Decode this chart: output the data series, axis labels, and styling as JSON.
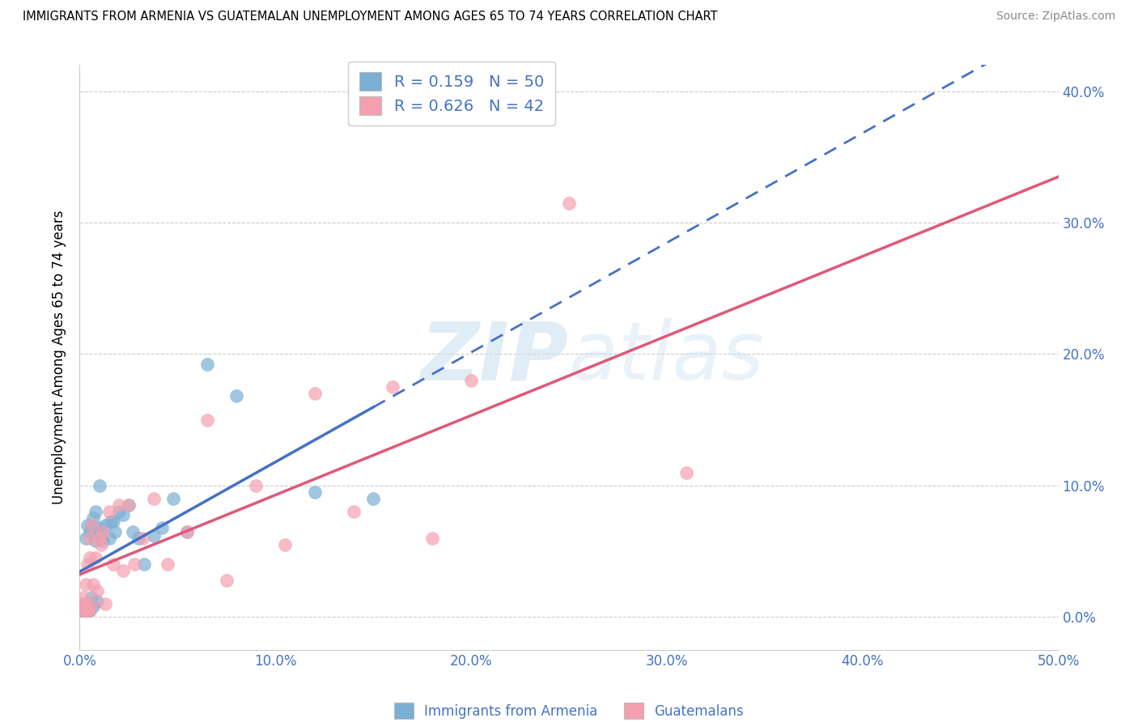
{
  "title": "IMMIGRANTS FROM ARMENIA VS GUATEMALAN UNEMPLOYMENT AMONG AGES 65 TO 74 YEARS CORRELATION CHART",
  "source": "Source: ZipAtlas.com",
  "ylabel": "Unemployment Among Ages 65 to 74 years",
  "legend_label1": "Immigrants from Armenia",
  "legend_label2": "Guatemalans",
  "r1": 0.159,
  "n1": 50,
  "r2": 0.626,
  "n2": 42,
  "xmin": 0.0,
  "xmax": 0.5,
  "ymin": -0.025,
  "ymax": 0.42,
  "xticks": [
    0.0,
    0.1,
    0.2,
    0.3,
    0.4,
    0.5
  ],
  "xticklabels": [
    "0.0%",
    "10.0%",
    "20.0%",
    "30.0%",
    "40.0%",
    "50.0%"
  ],
  "yticks": [
    0.0,
    0.1,
    0.2,
    0.3,
    0.4
  ],
  "yticklabels": [
    "0.0%",
    "10.0%",
    "20.0%",
    "30.0%",
    "40.0%"
  ],
  "color1": "#7bafd4",
  "color2": "#f4a0b0",
  "line1_color": "#4472c4",
  "line2_color": "#e05878",
  "watermark_zip": "ZIP",
  "watermark_atlas": "atlas",
  "armenia_x": [
    0.001,
    0.001,
    0.002,
    0.002,
    0.002,
    0.002,
    0.003,
    0.003,
    0.003,
    0.003,
    0.003,
    0.004,
    0.004,
    0.004,
    0.004,
    0.005,
    0.005,
    0.005,
    0.006,
    0.006,
    0.006,
    0.007,
    0.007,
    0.008,
    0.008,
    0.009,
    0.009,
    0.01,
    0.01,
    0.011,
    0.012,
    0.013,
    0.015,
    0.016,
    0.017,
    0.018,
    0.02,
    0.022,
    0.025,
    0.027,
    0.03,
    0.033,
    0.038,
    0.042,
    0.048,
    0.055,
    0.065,
    0.08,
    0.12,
    0.15
  ],
  "armenia_y": [
    0.005,
    0.01,
    0.005,
    0.005,
    0.007,
    0.008,
    0.005,
    0.005,
    0.005,
    0.007,
    0.06,
    0.005,
    0.008,
    0.01,
    0.07,
    0.005,
    0.008,
    0.065,
    0.01,
    0.015,
    0.07,
    0.008,
    0.075,
    0.058,
    0.08,
    0.012,
    0.065,
    0.068,
    0.1,
    0.065,
    0.058,
    0.07,
    0.06,
    0.073,
    0.073,
    0.065,
    0.08,
    0.078,
    0.085,
    0.065,
    0.06,
    0.04,
    0.062,
    0.068,
    0.09,
    0.065,
    0.192,
    0.168,
    0.095,
    0.09
  ],
  "guatemala_x": [
    0.001,
    0.001,
    0.002,
    0.002,
    0.003,
    0.003,
    0.003,
    0.004,
    0.004,
    0.005,
    0.005,
    0.005,
    0.006,
    0.006,
    0.007,
    0.008,
    0.009,
    0.01,
    0.011,
    0.012,
    0.013,
    0.015,
    0.017,
    0.02,
    0.022,
    0.025,
    0.028,
    0.032,
    0.038,
    0.045,
    0.055,
    0.065,
    0.075,
    0.09,
    0.105,
    0.12,
    0.14,
    0.16,
    0.18,
    0.2,
    0.25,
    0.31
  ],
  "guatemala_y": [
    0.005,
    0.01,
    0.005,
    0.015,
    0.005,
    0.01,
    0.025,
    0.005,
    0.04,
    0.005,
    0.045,
    0.06,
    0.01,
    0.07,
    0.025,
    0.045,
    0.02,
    0.06,
    0.055,
    0.065,
    0.01,
    0.08,
    0.04,
    0.085,
    0.035,
    0.085,
    0.04,
    0.06,
    0.09,
    0.04,
    0.065,
    0.15,
    0.028,
    0.1,
    0.055,
    0.17,
    0.08,
    0.175,
    0.06,
    0.18,
    0.315,
    0.11
  ]
}
